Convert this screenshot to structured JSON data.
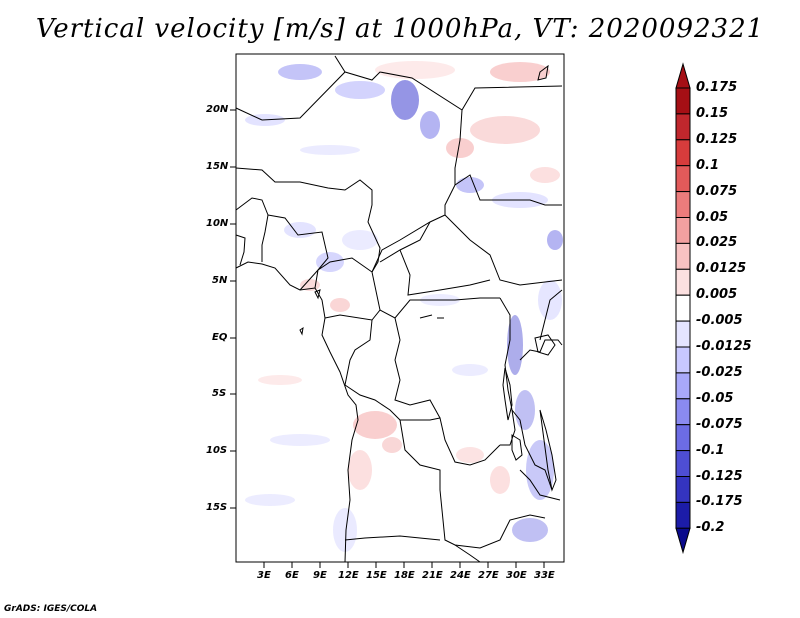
{
  "title": "Vertical velocity [m/s] at 1000hPa, VT: 2020092321",
  "credit": "GrADS: IGES/COLA",
  "map": {
    "lat_labels": [
      "20N",
      "15N",
      "10N",
      "5N",
      "EQ",
      "5S",
      "10S",
      "15S"
    ],
    "lon_labels": [
      "3E",
      "6E",
      "9E",
      "12E",
      "15E",
      "18E",
      "21E",
      "24E",
      "27E",
      "30E",
      "33E"
    ]
  },
  "colorbar": {
    "labels": [
      "0.175",
      "0.15",
      "0.125",
      "0.1",
      "0.075",
      "0.05",
      "0.025",
      "0.0125",
      "0.005",
      "-0.005",
      "-0.0125",
      "-0.025",
      "-0.05",
      "-0.075",
      "-0.1",
      "-0.125",
      "-0.175",
      "-0.2"
    ],
    "colors": [
      "#a50f15",
      "#c0272d",
      "#d73c3c",
      "#e25a5a",
      "#ec7c7c",
      "#f3a0a0",
      "#f8c2c2",
      "#fce0e0",
      "#ffffff",
      "#e4e4ff",
      "#c8c8ff",
      "#a8a8fa",
      "#8a8af0",
      "#6c6ce4",
      "#4e4ed4",
      "#3434c0",
      "#1c1ca8",
      "#0a0a8c"
    ]
  }
}
